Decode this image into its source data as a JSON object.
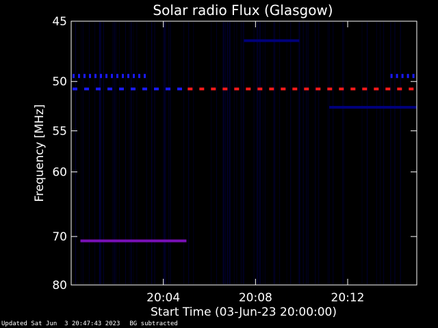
{
  "chart_data": {
    "type": "heatmap",
    "title": "Solar radio Flux (Glasgow)",
    "xlabel": "Start Time (03-Jun-23 20:00:00)",
    "ylabel": "Frequency [MHz]",
    "x_unit": "minutes after 20:00",
    "xlim": [
      0,
      15
    ],
    "ylim": [
      45,
      80
    ],
    "y_scale": "reciprocal",
    "y_ticks": [
      45,
      50,
      55,
      60,
      70,
      80
    ],
    "x_ticks": [
      {
        "value": 4,
        "label": "20:04"
      },
      {
        "value": 8,
        "label": "20:08"
      },
      {
        "value": 12,
        "label": "20:12"
      }
    ],
    "grid": false,
    "colors": {
      "background": "#000000",
      "low": "#00007a",
      "medium": "#1a1aff",
      "high": "#ff1a1a",
      "mixed": "#7a10b8"
    },
    "bands": [
      {
        "freq": 50.7,
        "x_start": 0.0,
        "x_end": 5.0,
        "intensity": "medium",
        "pattern": "dashed"
      },
      {
        "freq": 50.7,
        "x_start": 5.0,
        "x_end": 15.0,
        "intensity": "high",
        "pattern": "dashed"
      },
      {
        "freq": 49.5,
        "x_start": 0.0,
        "x_end": 3.2,
        "intensity": "medium",
        "pattern": "dotted"
      },
      {
        "freq": 49.5,
        "x_start": 13.8,
        "x_end": 15.0,
        "intensity": "medium",
        "pattern": "dotted"
      },
      {
        "freq": 70.8,
        "x_start": 0.4,
        "x_end": 5.0,
        "intensity": "mixed",
        "pattern": "solid"
      },
      {
        "freq": 52.5,
        "x_start": 11.2,
        "x_end": 15.0,
        "intensity": "low",
        "pattern": "solid"
      },
      {
        "freq": 46.5,
        "x_start": 7.5,
        "x_end": 9.9,
        "intensity": "low",
        "pattern": "solid"
      }
    ]
  },
  "footer": {
    "updated": "Updated Sat Jun  3 20:47:43 2023",
    "note": "BG subtracted"
  }
}
